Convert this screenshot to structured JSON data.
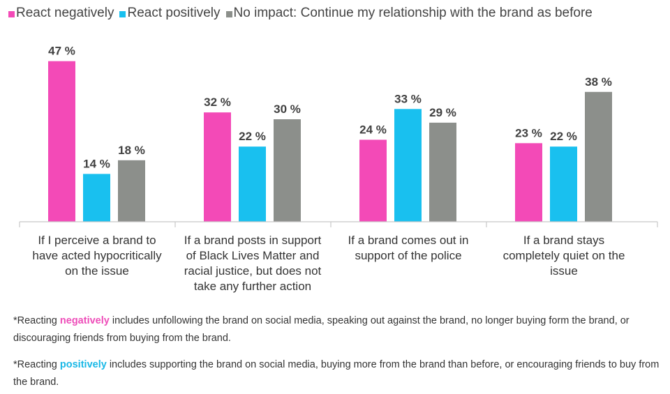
{
  "colors": {
    "negative": "#f34ab7",
    "positive": "#19c0ef",
    "neutral": "#8c8f8b",
    "highlight_negative": "#ee4db9",
    "highlight_positive": "#19b8e6"
  },
  "legend": [
    {
      "label": "React negatively",
      "color_key": "negative"
    },
    {
      "label": "React positively",
      "color_key": "positive"
    },
    {
      "label": "No impact: Continue my relationship with the brand as before",
      "color_key": "neutral"
    }
  ],
  "chart_data": {
    "type": "bar",
    "title": "",
    "xlabel": "",
    "ylabel": "",
    "ylim": [
      0,
      50
    ],
    "grid": false,
    "legend_position": "top",
    "categories": [
      [
        "If I perceive a brand to",
        "have acted hypocritically",
        "on the issue"
      ],
      [
        "If a brand posts in support",
        "of Black Lives Matter and",
        "racial justice, but does not",
        "take any further action"
      ],
      [
        "If a brand comes out in",
        "support of the police"
      ],
      [
        "If a brand stays",
        "completely quiet on the",
        "issue"
      ]
    ],
    "series": [
      {
        "name": "React negatively",
        "values": [
          47,
          32,
          24,
          23
        ],
        "labels": [
          "47 %",
          "32 %",
          "24 %",
          "23 %"
        ]
      },
      {
        "name": "React positively",
        "values": [
          14,
          22,
          33,
          22
        ],
        "labels": [
          "14 %",
          "22 %",
          "33 %",
          "22 %"
        ]
      },
      {
        "name": "No impact: Continue my relationship with the brand as before",
        "values": [
          18,
          30,
          29,
          38
        ],
        "labels": [
          "18 %",
          "30 %",
          "29 %",
          "38 %"
        ]
      }
    ]
  },
  "footnotes": {
    "negative": {
      "prefix": "*Reacting ",
      "highlight": "negatively",
      "rest": " includes unfollowing the brand on social media, speaking out against the brand, no longer buying form the brand, or discouraging friends from buying from the brand."
    },
    "positive": {
      "prefix": "*Reacting ",
      "highlight": "positively",
      "rest": " includes supporting the brand on social media, buying more from the brand than before, or encouraging friends to buy from the brand."
    }
  }
}
